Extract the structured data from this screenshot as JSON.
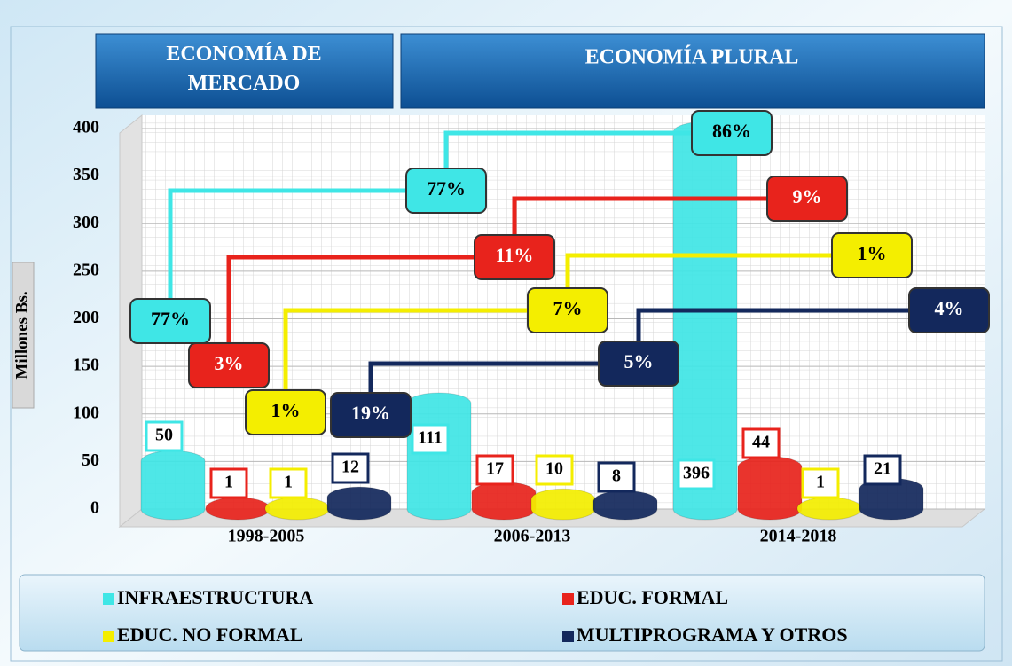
{
  "chart_data": {
    "type": "bar",
    "headers": [
      "ECONOMÍA DE MERCADO",
      "ECONOMÍA PLURAL"
    ],
    "y_label": "Millones Bs.",
    "categories": [
      "1998-2005",
      "2006-2013",
      "2014-2018"
    ],
    "series": [
      {
        "name": "INFRAESTRUCTURA",
        "color": "#3fe6e6",
        "values": [
          50,
          111,
          396
        ],
        "share_labels": [
          "77%",
          "77%",
          "86%"
        ]
      },
      {
        "name": "EDUC. FORMAL",
        "color": "#e8231c",
        "values": [
          1,
          17,
          44
        ],
        "share_labels": [
          "3%",
          "11%",
          "9%"
        ]
      },
      {
        "name": "EDUC. NO FORMAL",
        "color": "#f4ee00",
        "values": [
          1,
          10,
          1
        ],
        "share_labels": [
          "1%",
          "7%",
          "1%"
        ]
      },
      {
        "name": "MULTIPROGRAMA Y OTROS",
        "color": "#13285c",
        "values": [
          12,
          8,
          21
        ],
        "share_labels": [
          "19%",
          "5%",
          "4%"
        ]
      }
    ],
    "ylim": [
      0,
      400
    ],
    "yticks": [
      0,
      50,
      100,
      150,
      200,
      250,
      300,
      350,
      400
    ],
    "grid": true
  }
}
